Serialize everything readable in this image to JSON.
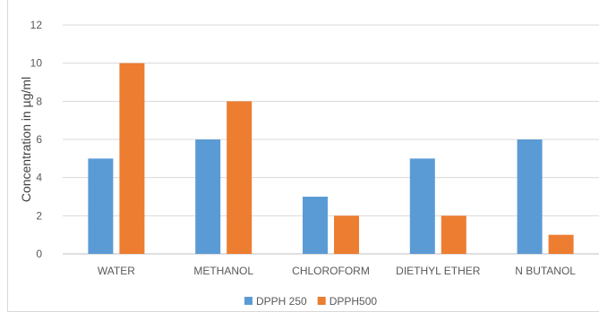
{
  "chart_data": {
    "type": "bar",
    "categories": [
      "WATER",
      "METHANOL",
      "CHLOROFORM",
      "DIETHYL ETHER",
      "N BUTANOL"
    ],
    "series": [
      {
        "name": "DPPH 250",
        "values": [
          5,
          6,
          3,
          5,
          6
        ],
        "color": "#5b9bd5"
      },
      {
        "name": "DPPH500",
        "values": [
          10,
          8,
          2,
          2,
          1
        ],
        "color": "#ed7d31"
      }
    ],
    "title": "",
    "xlabel": "",
    "ylabel": "Concentration in µg/ml",
    "ylim": [
      0,
      12
    ],
    "yticks": [
      "0",
      "2",
      "4",
      "6",
      "8",
      "10",
      "12"
    ],
    "grid": true,
    "legend": "bottom"
  }
}
